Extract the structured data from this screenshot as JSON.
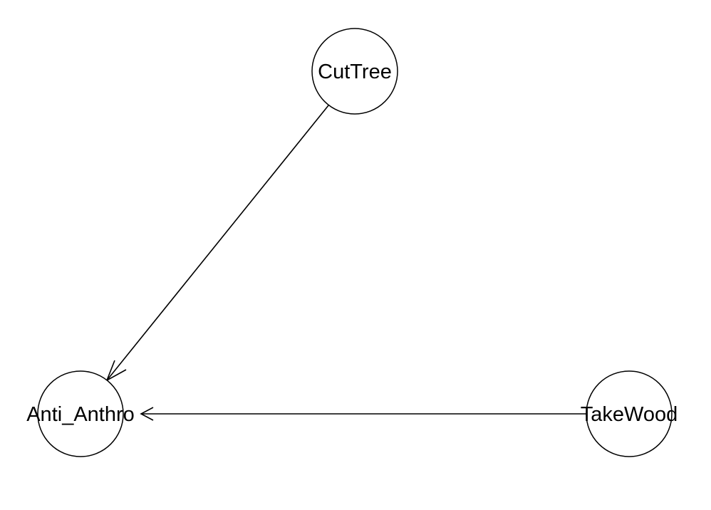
{
  "diagram": {
    "type": "directed-graph",
    "nodes": [
      {
        "id": "cuttree",
        "label": "CutTree"
      },
      {
        "id": "anti_anthro",
        "label": "Anti_Anthro"
      },
      {
        "id": "takewood",
        "label": "TakeWood"
      }
    ],
    "edges": [
      {
        "from": "cuttree",
        "to": "anti_anthro"
      },
      {
        "from": "takewood",
        "to": "anti_anthro"
      }
    ],
    "colors": {
      "stroke": "#000000",
      "node_fill": "#ffffff",
      "background": "#ffffff"
    }
  }
}
